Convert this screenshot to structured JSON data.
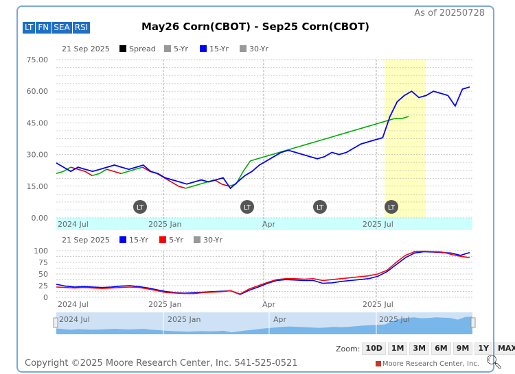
{
  "header": {
    "as_of": "As of 20250728",
    "title": "May26 Corn(CBOT) - Sep25 Corn(CBOT)",
    "tabs": [
      "LT",
      "FN",
      "SEA",
      "RSI"
    ]
  },
  "main_legend": {
    "date": "21 Sep 2025",
    "items": [
      {
        "label": "Spread",
        "color": "#000000"
      },
      {
        "label": "5-Yr",
        "color": "#999999"
      },
      {
        "label": "15-Yr",
        "color": "#0000ff"
      },
      {
        "label": "30-Yr",
        "color": "#999999"
      }
    ]
  },
  "sub_legend": {
    "date": "21 Sep 2025",
    "items": [
      {
        "label": "15-Yr",
        "color": "#0000ff"
      },
      {
        "label": "5-Yr",
        "color": "#ff0000"
      },
      {
        "label": "30-Yr",
        "color": "#999999"
      }
    ]
  },
  "chart_data": [
    {
      "type": "line",
      "x_labels": [
        "2024 Jul",
        "2025 Jan",
        "Apr",
        "2025 Jul"
      ],
      "y_ticks": [
        "75.00",
        "60.00",
        "45.00",
        "30.00",
        "15.00",
        "0.00"
      ],
      "ylim": [
        0,
        75
      ],
      "highlight_label": "seasonal window (shaded yellow)",
      "markers": [
        "LT",
        "LT",
        "LT",
        "LT"
      ],
      "series": [
        {
          "name": "Spread",
          "color_up": "#00aa00",
          "color_down": "#dd0000",
          "values": [
            21,
            22,
            24,
            23,
            22,
            20,
            21,
            23,
            22,
            21,
            22,
            23,
            24,
            22,
            21,
            19,
            17,
            15,
            14,
            15,
            16,
            17,
            18,
            16,
            15,
            16,
            22,
            27,
            28,
            29,
            30,
            31,
            32,
            33,
            34,
            35,
            36,
            37,
            38,
            39,
            40,
            41,
            42,
            43,
            44,
            45,
            46,
            47,
            47,
            48
          ]
        },
        {
          "name": "15-Yr",
          "color": "#0000ff",
          "values": [
            26,
            24,
            22,
            24,
            23,
            22,
            23,
            24,
            25,
            24,
            23,
            24,
            25,
            22,
            21,
            19,
            18,
            17,
            16,
            17,
            18,
            17,
            18,
            19,
            14,
            17,
            20,
            22,
            25,
            27,
            29,
            31,
            32,
            31,
            30,
            29,
            28,
            29,
            31,
            30,
            31,
            33,
            35,
            36,
            37,
            38,
            48,
            55,
            58,
            60,
            57,
            58,
            60,
            59,
            58,
            53,
            61,
            62
          ]
        }
      ]
    },
    {
      "type": "line",
      "x_labels": [
        "2024 Jul",
        "2025 Jan",
        "Apr",
        "2025 Jul"
      ],
      "y_ticks": [
        "100",
        "75",
        "50",
        "25",
        "0"
      ],
      "ylim": [
        0,
        100
      ],
      "series": [
        {
          "name": "15-Yr",
          "color": "#0000ff",
          "values": [
            28,
            24,
            22,
            23,
            22,
            21,
            22,
            24,
            25,
            23,
            20,
            16,
            12,
            10,
            9,
            10,
            11,
            12,
            13,
            14,
            6,
            15,
            22,
            30,
            36,
            38,
            37,
            36,
            36,
            30,
            31,
            34,
            36,
            38,
            40,
            45,
            55,
            70,
            85,
            95,
            98,
            97,
            96,
            95,
            90,
            96
          ]
        },
        {
          "name": "5-Yr",
          "color": "#ff0000",
          "values": [
            22,
            21,
            20,
            21,
            20,
            19,
            20,
            21,
            22,
            21,
            18,
            14,
            10,
            9,
            8,
            8,
            10,
            11,
            12,
            14,
            7,
            18,
            25,
            32,
            38,
            40,
            40,
            39,
            40,
            36,
            38,
            40,
            42,
            44,
            46,
            50,
            58,
            75,
            90,
            98,
            99,
            98,
            97,
            92,
            88,
            85
          ]
        }
      ]
    }
  ],
  "navigator": {
    "labels": [
      "2024 Jul",
      "2025 Jan",
      "Apr",
      "2025 Jul"
    ]
  },
  "zoom": {
    "label": "Zoom:",
    "buttons": [
      "10D",
      "1M",
      "3M",
      "6M",
      "9M",
      "1Y",
      "MAX"
    ]
  },
  "footer": {
    "copyright": "Copyright ©2025 Moore Research Center, Inc. 541-525-0521",
    "brand": "Moore Research Center, Inc."
  }
}
